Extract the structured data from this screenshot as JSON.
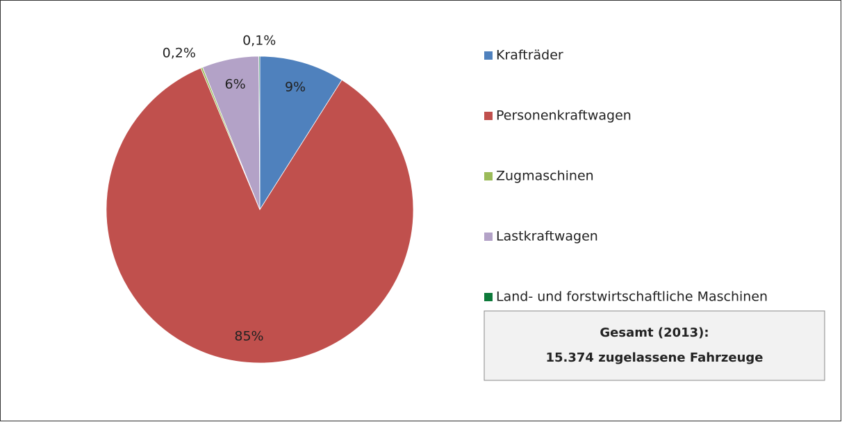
{
  "chart_data": {
    "type": "pie",
    "categories": [
      "Krafträder",
      "Personenkraftwagen",
      "Zugmaschinen",
      "Lastkraftwagen",
      "Land- und forstwirtschaftliche Maschinen"
    ],
    "values": [
      9,
      85,
      0.2,
      6,
      0.1
    ],
    "value_labels": [
      "9%",
      "85%",
      "0,2%",
      "6%",
      "0,1%"
    ],
    "colors": [
      "#4f81bd",
      "#c0504d",
      "#9bbb59",
      "#b3a2c7",
      "#0e7a3a"
    ],
    "legend": "right",
    "annotation": [
      "Gesamt (2013):",
      "15.374 zugelassene Fahrzeuge"
    ]
  }
}
